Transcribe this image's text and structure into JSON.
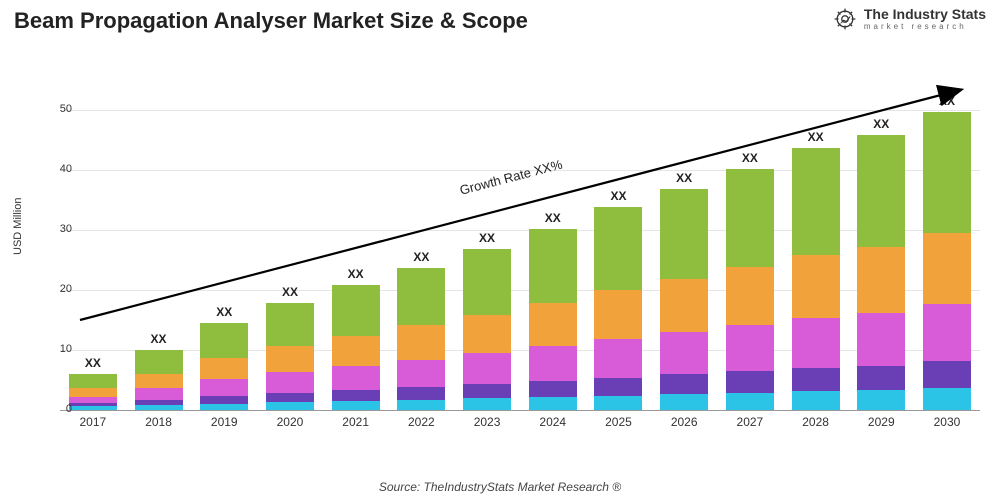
{
  "title": "Beam Propagation Analyser Market Size & Scope",
  "logo": {
    "line1": "The Industry Stats",
    "line2": "market research"
  },
  "y_axis": {
    "label": "USD Million",
    "ticks": [
      0,
      10,
      20,
      30,
      40,
      50
    ],
    "max": 55
  },
  "chart": {
    "type": "stacked-bar",
    "background": "#ffffff",
    "grid_color": "#e5e5e5",
    "axis_color": "#999999",
    "categories": [
      "2017",
      "2018",
      "2019",
      "2020",
      "2021",
      "2022",
      "2023",
      "2024",
      "2025",
      "2026",
      "2027",
      "2028",
      "2029",
      "2030"
    ],
    "bar_label": "XX",
    "segment_colors": [
      "#2cc4e6",
      "#6a3fb5",
      "#d85bd8",
      "#f2a23a",
      "#8fbe3f"
    ],
    "series": [
      [
        0.6,
        0.5,
        1.1,
        1.4,
        2.4
      ],
      [
        0.8,
        0.9,
        1.9,
        2.4,
        4.0
      ],
      [
        1.0,
        1.3,
        2.8,
        3.5,
        5.9
      ],
      [
        1.3,
        1.6,
        3.4,
        4.3,
        7.3
      ],
      [
        1.5,
        1.9,
        4.0,
        5.0,
        8.5
      ],
      [
        1.7,
        2.2,
        4.5,
        5.7,
        9.6
      ],
      [
        2.0,
        2.4,
        5.1,
        6.4,
        10.9
      ],
      [
        2.2,
        2.7,
        5.8,
        7.2,
        12.3
      ],
      [
        2.4,
        3.0,
        6.5,
        8.1,
        13.8
      ],
      [
        2.7,
        3.3,
        7.0,
        8.8,
        15.0
      ],
      [
        2.9,
        3.6,
        7.7,
        9.6,
        16.4
      ],
      [
        3.1,
        3.9,
        8.4,
        10.5,
        17.8
      ],
      [
        3.3,
        4.1,
        8.8,
        11.0,
        18.7
      ],
      [
        3.6,
        4.5,
        9.5,
        11.9,
        20.2
      ]
    ]
  },
  "growth_arrow": {
    "label": "Growth Rate XX%"
  },
  "source": "Source: TheIndustryStats Market Research ®"
}
